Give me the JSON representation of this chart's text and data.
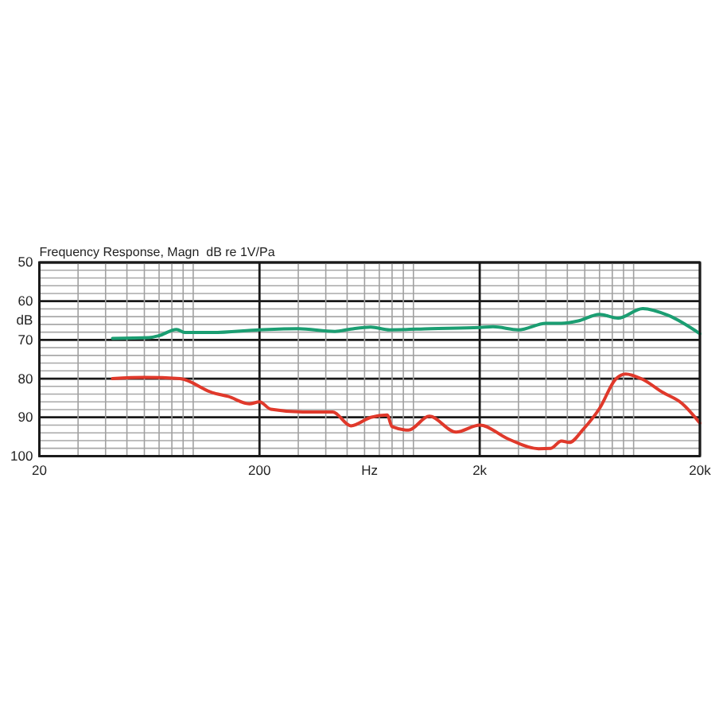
{
  "chart_data": {
    "type": "line",
    "title": "Frequency Response, Magn  dB re 1V/Pa",
    "xlabel": "Hz",
    "ylabel": "dB",
    "log": "x",
    "grid": true,
    "xlim": [
      20,
      20000
    ],
    "ylim": [
      100,
      50
    ],
    "xticks": [
      20,
      {
        "value": 30,
        "label": null
      },
      {
        "value": 40,
        "label": null
      },
      {
        "value": 50,
        "label": null
      },
      {
        "value": 60,
        "label": null
      },
      {
        "value": 70,
        "label": null
      },
      {
        "value": 80,
        "label": null
      },
      {
        "value": 90,
        "label": null
      },
      {
        "value": 100,
        "label": null
      },
      200,
      {
        "value": 300,
        "label": null
      },
      {
        "value": 400,
        "label": null
      },
      {
        "value": 500,
        "label": null
      },
      {
        "value": 600,
        "label": null
      },
      {
        "value": 700,
        "label": null
      },
      {
        "value": 800,
        "label": null
      },
      {
        "value": 900,
        "label": null
      },
      {
        "value": 1000,
        "label": null
      },
      {
        "value": 2000,
        "label": "2k"
      },
      {
        "value": 3000,
        "label": null
      },
      {
        "value": 4000,
        "label": null
      },
      {
        "value": 5000,
        "label": null
      },
      {
        "value": 6000,
        "label": null
      },
      {
        "value": 7000,
        "label": null
      },
      {
        "value": 8000,
        "label": null
      },
      {
        "value": 9000,
        "label": null
      },
      {
        "value": 10000,
        "label": null
      },
      {
        "value": 20000,
        "label": "20k"
      }
    ],
    "yticks": [
      50,
      {
        "value": 52,
        "label": null
      },
      {
        "value": 54,
        "label": null
      },
      {
        "value": 56,
        "label": null
      },
      {
        "value": 58,
        "label": null
      },
      60,
      {
        "value": 62,
        "label": null
      },
      {
        "value": 64,
        "label": null
      },
      {
        "value": 66,
        "label": null
      },
      {
        "value": 68,
        "label": null
      },
      70,
      {
        "value": 72,
        "label": null
      },
      {
        "value": 74,
        "label": null
      },
      {
        "value": 76,
        "label": null
      },
      {
        "value": 78,
        "label": null
      },
      80,
      {
        "value": 82,
        "label": null
      },
      {
        "value": 84,
        "label": null
      },
      {
        "value": 86,
        "label": null
      },
      {
        "value": 88,
        "label": null
      },
      90,
      {
        "value": 92,
        "label": null
      },
      {
        "value": 94,
        "label": null
      },
      {
        "value": 96,
        "label": null
      },
      {
        "value": 98,
        "label": null
      },
      100
    ],
    "series": [
      {
        "color": "#1b9e72",
        "x": [
          43,
          63,
          70,
          84,
          92,
          122,
          200,
          300,
          440,
          520,
          640,
          780,
          1200,
          2000,
          2300,
          3000,
          4000,
          4700,
          5600,
          7000,
          8500,
          11000,
          14400,
          20000
        ],
        "values": [
          69.6,
          69.4,
          68.9,
          67.3,
          68.1,
          68.1,
          67.4,
          67.1,
          67.8,
          67.2,
          66.7,
          67.4,
          67.1,
          66.8,
          66.6,
          67.4,
          65.7,
          65.7,
          65.1,
          63.4,
          64.4,
          61.9,
          63.7,
          68.4
        ]
      },
      {
        "color": "#e0392b",
        "x": [
          43,
          60,
          87,
          122,
          144,
          180,
          200,
          225,
          314,
          430,
          520,
          640,
          760,
          800,
          950,
          1180,
          1560,
          2000,
          2700,
          3700,
          4200,
          4700,
          5100,
          5900,
          7000,
          8300,
          9200,
          10900,
          13600,
          16500,
          20000
        ],
        "values": [
          80.0,
          79.7,
          80.0,
          83.6,
          84.6,
          86.5,
          86.0,
          87.9,
          88.6,
          88.6,
          92.2,
          90.0,
          89.4,
          92.4,
          93.3,
          89.7,
          93.8,
          92.0,
          95.6,
          98.1,
          98.0,
          96.1,
          96.5,
          93.1,
          87.7,
          80.1,
          78.8,
          80.1,
          83.6,
          86.3,
          91.5
        ]
      }
    ]
  }
}
